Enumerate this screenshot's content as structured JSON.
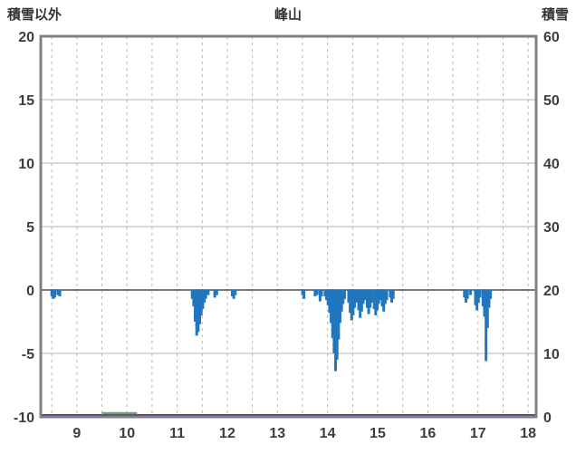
{
  "header": {
    "left_axis_title": "積雪以外",
    "title": "峰山",
    "right_axis_title": "積雪"
  },
  "chart_data": {
    "type": "bar",
    "title": "峰山",
    "left_axis": {
      "label": "積雪以外",
      "ticks": [
        20,
        15,
        10,
        5,
        0,
        -5,
        -10
      ],
      "range": [
        -10,
        20
      ]
    },
    "right_axis": {
      "label": "積雪",
      "ticks": [
        60,
        50,
        40,
        30,
        20,
        10,
        0
      ],
      "range": [
        0,
        60
      ]
    },
    "x_axis": {
      "ticks": [
        9,
        10,
        11,
        12,
        13,
        14,
        15,
        16,
        17,
        18
      ],
      "range": [
        8.28,
        18.16
      ],
      "gridline_step": 0.5
    },
    "grid": {
      "horizontal": "solid",
      "vertical": "dashed"
    },
    "colors": {
      "bar": "#2176bd",
      "snow_line": "#5e3192",
      "secondary_line": "#6f9e6f",
      "frame": "#808080",
      "gridline": "#b5b5b5",
      "zero_line": "#7a7a7a",
      "tick_text": "#3d3d3d"
    },
    "series": [
      {
        "name": "積雪以外",
        "type": "bar",
        "axis": "left",
        "color": "#2176bd",
        "points": [
          [
            8.5,
            -0.5
          ],
          [
            8.53,
            -0.7
          ],
          [
            8.56,
            -0.6
          ],
          [
            8.62,
            -0.4
          ],
          [
            8.66,
            -0.5
          ],
          [
            11.3,
            -0.7
          ],
          [
            11.33,
            -1.3
          ],
          [
            11.36,
            -2.5
          ],
          [
            11.39,
            -3.6
          ],
          [
            11.42,
            -3.3
          ],
          [
            11.45,
            -2.7
          ],
          [
            11.48,
            -2.0
          ],
          [
            11.51,
            -1.5
          ],
          [
            11.54,
            -1.0
          ],
          [
            11.57,
            -0.7
          ],
          [
            11.62,
            -0.4
          ],
          [
            11.75,
            -0.6
          ],
          [
            11.79,
            -0.4
          ],
          [
            12.1,
            -0.5
          ],
          [
            12.13,
            -0.7
          ],
          [
            12.16,
            -0.4
          ],
          [
            13.5,
            -0.4
          ],
          [
            13.53,
            -0.7
          ],
          [
            13.75,
            -0.5
          ],
          [
            13.79,
            -0.4
          ],
          [
            13.85,
            -0.9
          ],
          [
            13.88,
            -0.5
          ],
          [
            13.95,
            -0.5
          ],
          [
            13.98,
            -0.8
          ],
          [
            14.01,
            -1.2
          ],
          [
            14.04,
            -1.8
          ],
          [
            14.07,
            -2.6
          ],
          [
            14.1,
            -3.8
          ],
          [
            14.13,
            -5.0
          ],
          [
            14.16,
            -6.4
          ],
          [
            14.19,
            -5.5
          ],
          [
            14.22,
            -3.9
          ],
          [
            14.25,
            -2.6
          ],
          [
            14.28,
            -1.7
          ],
          [
            14.31,
            -1.1
          ],
          [
            14.34,
            -0.7
          ],
          [
            14.42,
            -1.0
          ],
          [
            14.45,
            -1.8
          ],
          [
            14.48,
            -2.4
          ],
          [
            14.51,
            -2.0
          ],
          [
            14.54,
            -1.4
          ],
          [
            14.57,
            -1.0
          ],
          [
            14.62,
            -1.6
          ],
          [
            14.65,
            -2.2
          ],
          [
            14.68,
            -1.7
          ],
          [
            14.71,
            -1.1
          ],
          [
            14.76,
            -0.8
          ],
          [
            14.79,
            -1.4
          ],
          [
            14.82,
            -1.9
          ],
          [
            14.85,
            -1.4
          ],
          [
            14.88,
            -1.0
          ],
          [
            14.93,
            -1.5
          ],
          [
            14.96,
            -2.0
          ],
          [
            14.99,
            -1.6
          ],
          [
            15.02,
            -1.1
          ],
          [
            15.05,
            -0.8
          ],
          [
            15.09,
            -1.3
          ],
          [
            15.12,
            -1.7
          ],
          [
            15.15,
            -1.1
          ],
          [
            15.18,
            -0.8
          ],
          [
            15.25,
            -0.6
          ],
          [
            15.28,
            -1.0
          ],
          [
            15.31,
            -0.7
          ],
          [
            16.73,
            -0.6
          ],
          [
            16.76,
            -1.0
          ],
          [
            16.79,
            -0.7
          ],
          [
            16.85,
            -0.4
          ],
          [
            16.95,
            -1.2
          ],
          [
            16.98,
            -1.6
          ],
          [
            17.01,
            -1.0
          ],
          [
            17.04,
            -0.6
          ],
          [
            17.1,
            -1.3
          ],
          [
            17.13,
            -2.1
          ],
          [
            17.16,
            -5.6
          ],
          [
            17.19,
            -3.0
          ],
          [
            17.22,
            -1.4
          ],
          [
            17.25,
            -0.7
          ]
        ]
      },
      {
        "name": "積雪",
        "type": "line",
        "axis": "right",
        "color": "#5e3192",
        "points": [
          [
            8.28,
            0
          ],
          [
            18.16,
            0
          ]
        ]
      },
      {
        "name": "secondary-baseline",
        "type": "line",
        "axis": "right",
        "color": "#6f9e6f",
        "points": [
          [
            9.5,
            0
          ],
          [
            10.2,
            0
          ]
        ]
      }
    ]
  }
}
